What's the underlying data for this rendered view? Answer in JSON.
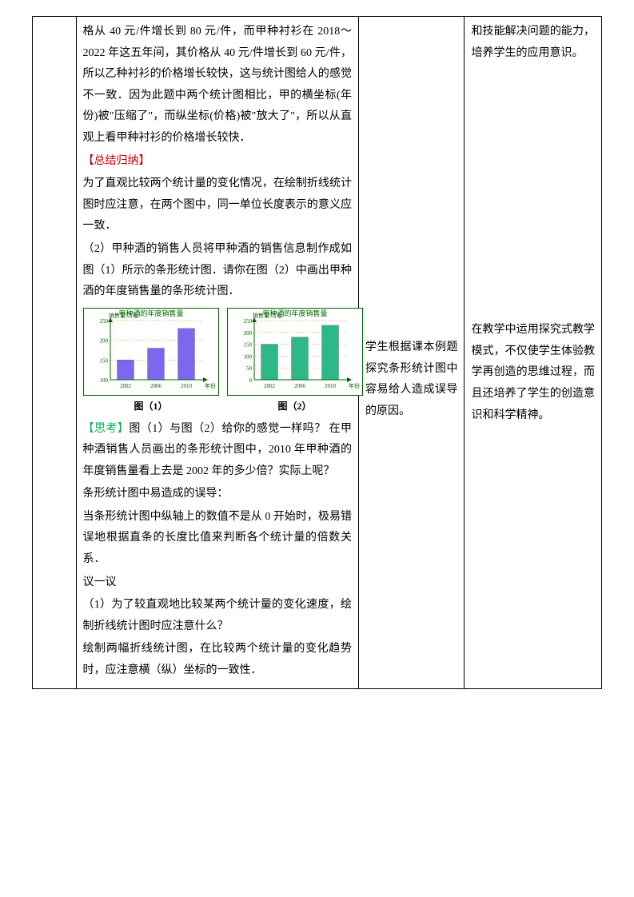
{
  "col2": {
    "p1": "格从 40 元/件增长到 80 元/件，而甲种衬衫在 2018～2022 年这五年间，其价格从 40 元/件增长到 60 元/件，所以乙种衬衫的价格增长较快，这与统计图给人的感觉不一致．因为此题中两个统计图相比，甲的横坐标(年份)被\"压缩了\"，而纵坐标(价格)被\"放大了\"，所以从直观上看甲种衬衫的价格增长较快．",
    "h1": "【总结归纳】",
    "p2": "为了直观比较两个统计量的变化情况，在绘制折线统计图时应注意，在两个图中，同一单位长度表示的意义应一致．",
    "p3": "（2）甲种酒的销售人员将甲种酒的销售信息制作成如图（1）所示的条形统计图．请你在图（2）中画出甲种酒的年度销售量的条形统计图．",
    "chart1": {
      "title": "甲种酒的年度销售量",
      "ylabel": "销售量/万瓶",
      "xlabel": "年份",
      "categories": [
        "2002",
        "2006",
        "2010"
      ],
      "values": [
        150,
        180,
        230
      ],
      "ylim": [
        100,
        250
      ],
      "yticks": [
        100,
        150,
        200,
        250
      ],
      "bar_color": "#7b68ee",
      "grid_color": "#ff8c00",
      "axis_color": "#006400",
      "text_color": "#006400",
      "bg": "#ffffff",
      "caption": "图（1）"
    },
    "chart2": {
      "title": "甲种酒的年度销售量",
      "ylabel": "销售量/万瓶",
      "xlabel": "年份",
      "categories": [
        "2002",
        "2006",
        "2010"
      ],
      "values": [
        150,
        180,
        230
      ],
      "ylim": [
        0,
        250
      ],
      "yticks": [
        0,
        50,
        100,
        150,
        200,
        250
      ],
      "bar_color": "#2eb88a",
      "grid_color": "#ff8c00",
      "axis_color": "#006400",
      "text_color": "#006400",
      "bg": "#ffffff",
      "caption": "图（2）"
    },
    "h2": "【思考】",
    "p4": "图（1）与图（2）给你的感觉一样吗？ 在甲种酒销售人员画出的条形统计图中，2010 年甲种酒的年度销售量看上去是 2002 年的多少倍？实际上呢？",
    "p5": "条形统计图中易造成的误导：",
    "p6": "当条形统计图中纵轴上的数值不是从 0 开始时，极易错误地根据直条的长度比值来判断各个统计量的倍数关系．",
    "p7": "议一议",
    "p8": "（1）为了较直观地比较某两个统计量的变化速度，绘制折线统计图时应注意什么？",
    "p9": "绘制两幅折线统计图，在比较两个统计量的变化趋势时，应注意横（纵）坐标的一致性．"
  },
  "col3": {
    "p1": "学生根据课本例题探究条形统计图中容易给人造成误导的原因。"
  },
  "col4": {
    "p1": "和技能解决问题的能力，培养学生的应用意识。",
    "p2": "在教学中运用探究式教学模式，不仅使学生体验教学再创造的思维过程，而且还培养了学生的创造意识和科学精神。"
  }
}
